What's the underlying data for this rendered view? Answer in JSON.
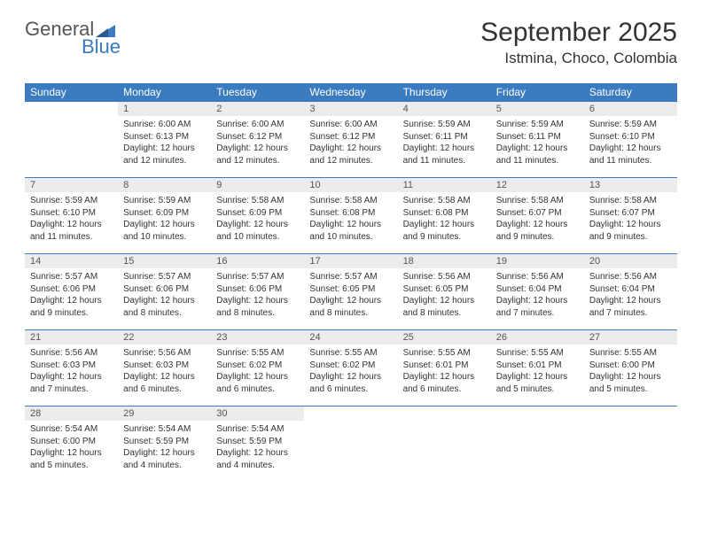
{
  "logo": {
    "top": "General",
    "bottom": "Blue"
  },
  "title": "September 2025",
  "location": "Istmina, Choco, Colombia",
  "colors": {
    "header_bg": "#3b7bbf",
    "header_text": "#ffffff",
    "daynum_bg": "#ececec",
    "daynum_text": "#555555",
    "body_text": "#333333",
    "row_border": "#3b7bbf",
    "page_bg": "#ffffff",
    "logo_gray": "#555555",
    "logo_blue": "#3b7bbf"
  },
  "dayNames": [
    "Sunday",
    "Monday",
    "Tuesday",
    "Wednesday",
    "Thursday",
    "Friday",
    "Saturday"
  ],
  "weeks": [
    [
      null,
      {
        "n": "1",
        "sr": "Sunrise: 6:00 AM",
        "ss": "Sunset: 6:13 PM",
        "dl1": "Daylight: 12 hours",
        "dl2": "and 12 minutes."
      },
      {
        "n": "2",
        "sr": "Sunrise: 6:00 AM",
        "ss": "Sunset: 6:12 PM",
        "dl1": "Daylight: 12 hours",
        "dl2": "and 12 minutes."
      },
      {
        "n": "3",
        "sr": "Sunrise: 6:00 AM",
        "ss": "Sunset: 6:12 PM",
        "dl1": "Daylight: 12 hours",
        "dl2": "and 12 minutes."
      },
      {
        "n": "4",
        "sr": "Sunrise: 5:59 AM",
        "ss": "Sunset: 6:11 PM",
        "dl1": "Daylight: 12 hours",
        "dl2": "and 11 minutes."
      },
      {
        "n": "5",
        "sr": "Sunrise: 5:59 AM",
        "ss": "Sunset: 6:11 PM",
        "dl1": "Daylight: 12 hours",
        "dl2": "and 11 minutes."
      },
      {
        "n": "6",
        "sr": "Sunrise: 5:59 AM",
        "ss": "Sunset: 6:10 PM",
        "dl1": "Daylight: 12 hours",
        "dl2": "and 11 minutes."
      }
    ],
    [
      {
        "n": "7",
        "sr": "Sunrise: 5:59 AM",
        "ss": "Sunset: 6:10 PM",
        "dl1": "Daylight: 12 hours",
        "dl2": "and 11 minutes."
      },
      {
        "n": "8",
        "sr": "Sunrise: 5:59 AM",
        "ss": "Sunset: 6:09 PM",
        "dl1": "Daylight: 12 hours",
        "dl2": "and 10 minutes."
      },
      {
        "n": "9",
        "sr": "Sunrise: 5:58 AM",
        "ss": "Sunset: 6:09 PM",
        "dl1": "Daylight: 12 hours",
        "dl2": "and 10 minutes."
      },
      {
        "n": "10",
        "sr": "Sunrise: 5:58 AM",
        "ss": "Sunset: 6:08 PM",
        "dl1": "Daylight: 12 hours",
        "dl2": "and 10 minutes."
      },
      {
        "n": "11",
        "sr": "Sunrise: 5:58 AM",
        "ss": "Sunset: 6:08 PM",
        "dl1": "Daylight: 12 hours",
        "dl2": "and 9 minutes."
      },
      {
        "n": "12",
        "sr": "Sunrise: 5:58 AM",
        "ss": "Sunset: 6:07 PM",
        "dl1": "Daylight: 12 hours",
        "dl2": "and 9 minutes."
      },
      {
        "n": "13",
        "sr": "Sunrise: 5:58 AM",
        "ss": "Sunset: 6:07 PM",
        "dl1": "Daylight: 12 hours",
        "dl2": "and 9 minutes."
      }
    ],
    [
      {
        "n": "14",
        "sr": "Sunrise: 5:57 AM",
        "ss": "Sunset: 6:06 PM",
        "dl1": "Daylight: 12 hours",
        "dl2": "and 9 minutes."
      },
      {
        "n": "15",
        "sr": "Sunrise: 5:57 AM",
        "ss": "Sunset: 6:06 PM",
        "dl1": "Daylight: 12 hours",
        "dl2": "and 8 minutes."
      },
      {
        "n": "16",
        "sr": "Sunrise: 5:57 AM",
        "ss": "Sunset: 6:06 PM",
        "dl1": "Daylight: 12 hours",
        "dl2": "and 8 minutes."
      },
      {
        "n": "17",
        "sr": "Sunrise: 5:57 AM",
        "ss": "Sunset: 6:05 PM",
        "dl1": "Daylight: 12 hours",
        "dl2": "and 8 minutes."
      },
      {
        "n": "18",
        "sr": "Sunrise: 5:56 AM",
        "ss": "Sunset: 6:05 PM",
        "dl1": "Daylight: 12 hours",
        "dl2": "and 8 minutes."
      },
      {
        "n": "19",
        "sr": "Sunrise: 5:56 AM",
        "ss": "Sunset: 6:04 PM",
        "dl1": "Daylight: 12 hours",
        "dl2": "and 7 minutes."
      },
      {
        "n": "20",
        "sr": "Sunrise: 5:56 AM",
        "ss": "Sunset: 6:04 PM",
        "dl1": "Daylight: 12 hours",
        "dl2": "and 7 minutes."
      }
    ],
    [
      {
        "n": "21",
        "sr": "Sunrise: 5:56 AM",
        "ss": "Sunset: 6:03 PM",
        "dl1": "Daylight: 12 hours",
        "dl2": "and 7 minutes."
      },
      {
        "n": "22",
        "sr": "Sunrise: 5:56 AM",
        "ss": "Sunset: 6:03 PM",
        "dl1": "Daylight: 12 hours",
        "dl2": "and 6 minutes."
      },
      {
        "n": "23",
        "sr": "Sunrise: 5:55 AM",
        "ss": "Sunset: 6:02 PM",
        "dl1": "Daylight: 12 hours",
        "dl2": "and 6 minutes."
      },
      {
        "n": "24",
        "sr": "Sunrise: 5:55 AM",
        "ss": "Sunset: 6:02 PM",
        "dl1": "Daylight: 12 hours",
        "dl2": "and 6 minutes."
      },
      {
        "n": "25",
        "sr": "Sunrise: 5:55 AM",
        "ss": "Sunset: 6:01 PM",
        "dl1": "Daylight: 12 hours",
        "dl2": "and 6 minutes."
      },
      {
        "n": "26",
        "sr": "Sunrise: 5:55 AM",
        "ss": "Sunset: 6:01 PM",
        "dl1": "Daylight: 12 hours",
        "dl2": "and 5 minutes."
      },
      {
        "n": "27",
        "sr": "Sunrise: 5:55 AM",
        "ss": "Sunset: 6:00 PM",
        "dl1": "Daylight: 12 hours",
        "dl2": "and 5 minutes."
      }
    ],
    [
      {
        "n": "28",
        "sr": "Sunrise: 5:54 AM",
        "ss": "Sunset: 6:00 PM",
        "dl1": "Daylight: 12 hours",
        "dl2": "and 5 minutes."
      },
      {
        "n": "29",
        "sr": "Sunrise: 5:54 AM",
        "ss": "Sunset: 5:59 PM",
        "dl1": "Daylight: 12 hours",
        "dl2": "and 4 minutes."
      },
      {
        "n": "30",
        "sr": "Sunrise: 5:54 AM",
        "ss": "Sunset: 5:59 PM",
        "dl1": "Daylight: 12 hours",
        "dl2": "and 4 minutes."
      },
      null,
      null,
      null,
      null
    ]
  ]
}
